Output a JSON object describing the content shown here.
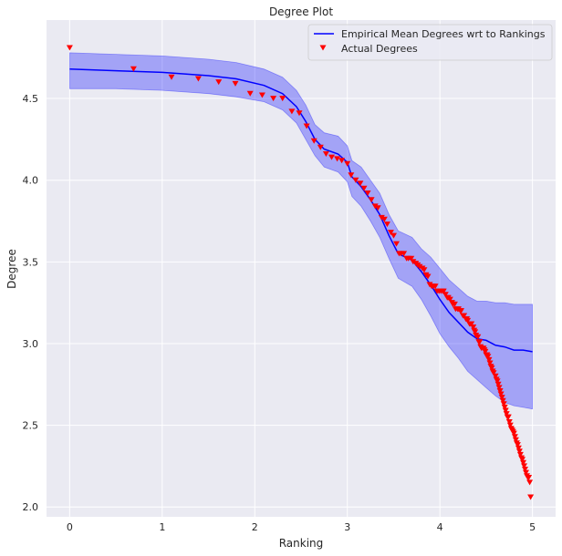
{
  "chart_data": {
    "type": "line",
    "title": "Degree Plot",
    "xlabel": "Ranking",
    "ylabel": "Degree",
    "xlim": [
      -0.25,
      5.25
    ],
    "ylim": [
      1.94,
      4.98
    ],
    "xticks": [
      0,
      1,
      2,
      3,
      4,
      5
    ],
    "yticks": [
      2.0,
      2.5,
      3.0,
      3.5,
      4.0,
      4.5
    ],
    "xtick_labels": [
      "0",
      "1",
      "2",
      "3",
      "4",
      "5"
    ],
    "ytick_labels": [
      "2.0",
      "2.5",
      "3.0",
      "3.5",
      "4.0",
      "4.5"
    ],
    "grid": true,
    "legend_position": "top-right",
    "colors": {
      "background": "#eaeaf2",
      "grid": "#ffffff",
      "mean_line": "#0000ff",
      "band": "#0000ff",
      "markers": "#ff0000"
    },
    "series": [
      {
        "name": "Empirical Mean Degrees wrt to Rankings",
        "kind": "line",
        "x": [
          0,
          0.5,
          1.0,
          1.5,
          1.8,
          2.1,
          2.3,
          2.45,
          2.55,
          2.65,
          2.75,
          2.9,
          3.0,
          3.05,
          3.15,
          3.25,
          3.35,
          3.45,
          3.55,
          3.7,
          3.8,
          3.9,
          4.0,
          4.1,
          4.2,
          4.3,
          4.4,
          4.5,
          4.6,
          4.7,
          4.8,
          4.9,
          5.0
        ],
        "y": [
          4.68,
          4.67,
          4.66,
          4.64,
          4.62,
          4.58,
          4.53,
          4.45,
          4.36,
          4.25,
          4.19,
          4.16,
          4.11,
          4.02,
          3.96,
          3.88,
          3.79,
          3.66,
          3.55,
          3.51,
          3.44,
          3.36,
          3.27,
          3.19,
          3.13,
          3.07,
          3.03,
          3.02,
          2.99,
          2.98,
          2.96,
          2.96,
          2.95
        ]
      },
      {
        "name": "band",
        "kind": "band",
        "x": [
          0,
          0.5,
          1.0,
          1.5,
          1.8,
          2.1,
          2.3,
          2.45,
          2.55,
          2.65,
          2.75,
          2.9,
          3.0,
          3.05,
          3.15,
          3.25,
          3.35,
          3.45,
          3.55,
          3.7,
          3.8,
          3.9,
          4.0,
          4.1,
          4.2,
          4.3,
          4.4,
          4.5,
          4.6,
          4.7,
          4.8,
          4.9,
          5.0
        ],
        "upper": [
          4.78,
          4.77,
          4.76,
          4.74,
          4.72,
          4.68,
          4.63,
          4.55,
          4.46,
          4.34,
          4.29,
          4.27,
          4.21,
          4.12,
          4.08,
          4.0,
          3.92,
          3.79,
          3.69,
          3.65,
          3.58,
          3.53,
          3.46,
          3.39,
          3.34,
          3.29,
          3.26,
          3.26,
          3.25,
          3.25,
          3.24,
          3.24,
          3.24
        ],
        "lower": [
          4.56,
          4.56,
          4.55,
          4.53,
          4.51,
          4.48,
          4.43,
          4.35,
          4.25,
          4.15,
          4.08,
          4.05,
          3.99,
          3.9,
          3.84,
          3.75,
          3.65,
          3.52,
          3.4,
          3.35,
          3.27,
          3.17,
          3.06,
          2.98,
          2.91,
          2.83,
          2.78,
          2.73,
          2.68,
          2.64,
          2.62,
          2.61,
          2.6
        ]
      },
      {
        "name": "Actual Degrees",
        "kind": "scatter",
        "x": [
          0,
          0.69,
          1.1,
          1.39,
          1.61,
          1.79,
          1.95,
          2.08,
          2.2,
          2.3,
          2.4,
          2.48,
          2.56,
          2.64,
          2.71,
          2.77,
          2.83,
          2.89,
          2.94,
          3.0,
          3.04,
          3.09,
          3.14,
          3.18,
          3.22,
          3.26,
          3.3,
          3.33,
          3.37,
          3.4,
          3.43,
          3.47,
          3.5,
          3.53,
          3.56,
          3.58,
          3.61,
          3.64,
          3.66,
          3.69,
          3.71,
          3.74,
          3.76,
          3.78,
          3.81,
          3.83,
          3.85,
          3.87,
          3.89,
          3.91,
          3.93,
          3.95,
          3.97,
          3.99,
          4.01,
          4.03,
          4.04,
          4.06,
          4.08,
          4.09,
          4.11,
          4.13,
          4.14,
          4.16,
          4.17,
          4.19,
          4.2,
          4.22,
          4.23,
          4.25,
          4.26,
          4.28,
          4.29,
          4.3,
          4.32,
          4.33,
          4.34,
          4.36,
          4.37,
          4.38,
          4.39,
          4.41,
          4.42,
          4.43,
          4.44,
          4.45,
          4.47,
          4.48,
          4.49,
          4.5,
          4.51,
          4.52,
          4.53,
          4.54,
          4.55,
          4.56,
          4.57,
          4.58,
          4.6,
          4.61,
          4.62,
          4.63,
          4.64,
          4.65,
          4.66,
          4.67,
          4.68,
          4.69,
          4.7,
          4.71,
          4.72,
          4.73,
          4.74,
          4.75,
          4.76,
          4.77,
          4.78,
          4.79,
          4.8,
          4.81,
          4.82,
          4.83,
          4.84,
          4.85,
          4.86,
          4.87,
          4.88,
          4.89,
          4.9,
          4.91,
          4.92,
          4.93,
          4.94,
          4.95,
          4.96,
          4.97,
          4.98
        ],
        "y": [
          4.81,
          4.68,
          4.63,
          4.62,
          4.6,
          4.59,
          4.53,
          4.52,
          4.5,
          4.5,
          4.42,
          4.41,
          4.33,
          4.24,
          4.2,
          4.16,
          4.14,
          4.13,
          4.12,
          4.1,
          4.03,
          4.0,
          3.98,
          3.95,
          3.92,
          3.88,
          3.84,
          3.83,
          3.77,
          3.76,
          3.73,
          3.68,
          3.66,
          3.61,
          3.55,
          3.55,
          3.55,
          3.52,
          3.52,
          3.52,
          3.5,
          3.49,
          3.48,
          3.47,
          3.46,
          3.45,
          3.42,
          3.41,
          3.36,
          3.35,
          3.35,
          3.35,
          3.32,
          3.32,
          3.32,
          3.32,
          3.32,
          3.3,
          3.28,
          3.28,
          3.27,
          3.25,
          3.24,
          3.24,
          3.21,
          3.21,
          3.21,
          3.2,
          3.2,
          3.17,
          3.17,
          3.15,
          3.15,
          3.14,
          3.12,
          3.12,
          3.12,
          3.1,
          3.08,
          3.07,
          3.05,
          3.04,
          3.01,
          3.01,
          2.98,
          2.97,
          2.97,
          2.96,
          2.95,
          2.93,
          2.93,
          2.92,
          2.9,
          2.88,
          2.86,
          2.85,
          2.83,
          2.82,
          2.8,
          2.78,
          2.77,
          2.75,
          2.73,
          2.71,
          2.69,
          2.67,
          2.65,
          2.63,
          2.61,
          2.59,
          2.57,
          2.55,
          2.55,
          2.52,
          2.5,
          2.48,
          2.47,
          2.46,
          2.45,
          2.43,
          2.41,
          2.39,
          2.38,
          2.36,
          2.34,
          2.32,
          2.3,
          2.29,
          2.27,
          2.25,
          2.23,
          2.21,
          2.19,
          2.18,
          2.18,
          2.15,
          2.06
        ]
      }
    ]
  }
}
